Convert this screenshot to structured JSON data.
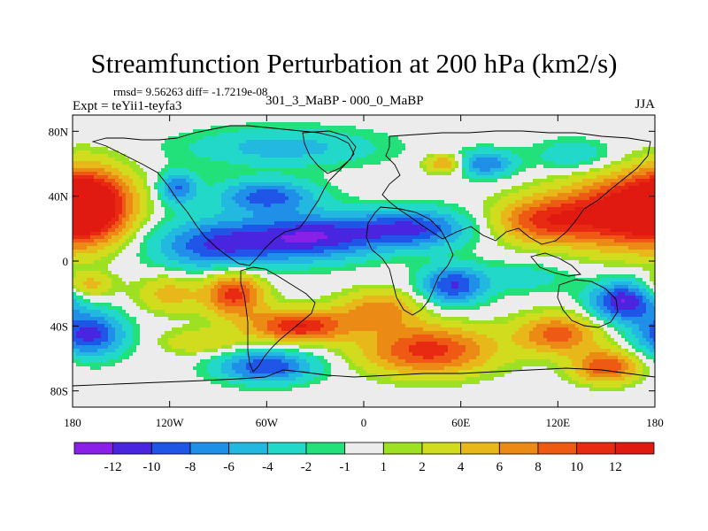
{
  "chart_data": {
    "type": "heatmap",
    "title": "Streamfunction Perturbation at 200 hPa (km2/s)",
    "stats_text": "rmsd= 9.56263 diff= -1.7219e-08",
    "left_label": "Expt = teYii1-teyfa3",
    "center_label": "301_3_MaBP - 000_0_MaBP",
    "right_label": "JJA",
    "xlim": [
      -180,
      180
    ],
    "ylim": [
      -90,
      90
    ],
    "x_ticks": [
      {
        "value": -180,
        "label": "180"
      },
      {
        "value": -120,
        "label": "120W"
      },
      {
        "value": -60,
        "label": "60W"
      },
      {
        "value": 0,
        "label": "0"
      },
      {
        "value": 60,
        "label": "60E"
      },
      {
        "value": 120,
        "label": "120E"
      },
      {
        "value": 180,
        "label": "180"
      }
    ],
    "y_ticks": [
      {
        "value": 80,
        "label": "80N"
      },
      {
        "value": 40,
        "label": "40N"
      },
      {
        "value": 0,
        "label": "0"
      },
      {
        "value": -40,
        "label": "40S"
      },
      {
        "value": -80,
        "label": "80S"
      }
    ],
    "colorbar": {
      "levels": [
        "-12",
        "-10",
        "-8",
        "-6",
        "-4",
        "-2",
        "-1",
        "1",
        "2",
        "4",
        "6",
        "8",
        "10",
        "12"
      ],
      "colors": [
        "#8a1fe8",
        "#4a25e0",
        "#1f56e8",
        "#1f8fe8",
        "#22b8e0",
        "#22d8c8",
        "#22e07a",
        "#ececec",
        "#9ee022",
        "#d2dc1e",
        "#e8b81a",
        "#ec8a16",
        "#ee5a14",
        "#e82a12",
        "#e01a10"
      ]
    },
    "field_centers": [
      {
        "lon": -170,
        "lat": 35,
        "value": 14,
        "rlon": 26,
        "rlat": 22
      },
      {
        "lon": 160,
        "lat": 30,
        "value": 13,
        "rlon": 40,
        "rlat": 22
      },
      {
        "lon": 110,
        "lat": 25,
        "value": 9,
        "rlon": 30,
        "rlat": 14
      },
      {
        "lon": -90,
        "lat": 10,
        "value": -10,
        "rlon": 40,
        "rlat": 16
      },
      {
        "lon": -30,
        "lat": 15,
        "value": -11,
        "rlon": 40,
        "rlat": 14
      },
      {
        "lon": 30,
        "lat": 20,
        "value": -10,
        "rlon": 35,
        "rlat": 12
      },
      {
        "lon": -60,
        "lat": 40,
        "value": -9,
        "rlon": 30,
        "rlat": 10
      },
      {
        "lon": -115,
        "lat": 45,
        "value": -8,
        "rlon": 12,
        "rlat": 10
      },
      {
        "lon": 75,
        "lat": 60,
        "value": -8,
        "rlon": 18,
        "rlat": 8
      },
      {
        "lon": -50,
        "lat": 70,
        "value": -5,
        "rlon": 60,
        "rlat": 12
      },
      {
        "lon": 130,
        "lat": 65,
        "value": -4,
        "rlon": 25,
        "rlat": 10
      },
      {
        "lon": 50,
        "lat": 60,
        "value": 7,
        "rlon": 12,
        "rlat": 6
      },
      {
        "lon": -80,
        "lat": -20,
        "value": 11,
        "rlon": 18,
        "rlat": 14
      },
      {
        "lon": -40,
        "lat": -40,
        "value": 12,
        "rlon": 30,
        "rlat": 10
      },
      {
        "lon": 40,
        "lat": -55,
        "value": 11,
        "rlon": 40,
        "rlat": 15
      },
      {
        "lon": 120,
        "lat": -45,
        "value": 9,
        "rlon": 25,
        "rlat": 12
      },
      {
        "lon": 150,
        "lat": -65,
        "value": 10,
        "rlon": 20,
        "rlat": 10
      },
      {
        "lon": 10,
        "lat": -30,
        "value": 7,
        "rlon": 25,
        "rlat": 12
      },
      {
        "lon": -120,
        "lat": -20,
        "value": 5,
        "rlon": 20,
        "rlat": 12
      },
      {
        "lon": -170,
        "lat": -45,
        "value": -11,
        "rlon": 22,
        "rlat": 14
      },
      {
        "lon": -60,
        "lat": -65,
        "value": -10,
        "rlon": 30,
        "rlat": 10
      },
      {
        "lon": 55,
        "lat": -15,
        "value": -10,
        "rlon": 20,
        "rlat": 12
      },
      {
        "lon": 160,
        "lat": -25,
        "value": -12,
        "rlon": 20,
        "rlat": 12
      },
      {
        "lon": 100,
        "lat": -10,
        "value": -3,
        "rlon": 30,
        "rlat": 10
      },
      {
        "lon": -170,
        "lat": -15,
        "value": 5,
        "rlon": 15,
        "rlat": 8
      },
      {
        "lon": -100,
        "lat": -50,
        "value": 4,
        "rlon": 25,
        "rlat": 8
      }
    ]
  }
}
